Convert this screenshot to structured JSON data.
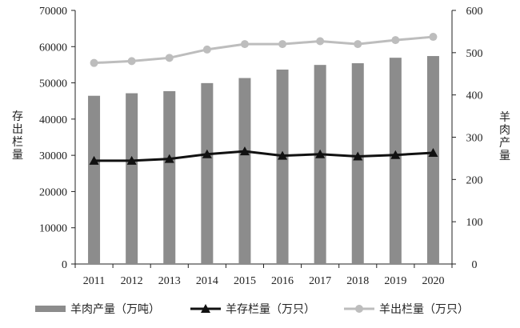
{
  "chart_data": {
    "type": "bar+line",
    "categories": [
      "2011",
      "2012",
      "2013",
      "2014",
      "2015",
      "2016",
      "2017",
      "2018",
      "2019",
      "2020"
    ],
    "left_axis": {
      "label": "存出栏量",
      "ylim": [
        0,
        70000
      ],
      "ticks": [
        "0",
        "10000",
        "20000",
        "30000",
        "40000",
        "50000",
        "60000",
        "70000"
      ]
    },
    "right_axis": {
      "label": "羊肉产量",
      "ylim": [
        0,
        600
      ],
      "ticks": [
        "0",
        "100",
        "200",
        "300",
        "400",
        "500",
        "600"
      ]
    },
    "series": [
      {
        "name": "羊肉产量（万吨）",
        "type": "bar",
        "axis": "right",
        "color": "#8c8c8c",
        "values": [
          398,
          404,
          409,
          428,
          440,
          460,
          471,
          475,
          488,
          492
        ]
      },
      {
        "name": "羊存栏量（万只）",
        "type": "line",
        "axis": "left",
        "marker": "triangle",
        "color": "#111111",
        "values": [
          28500,
          28500,
          29000,
          30300,
          31100,
          29900,
          30300,
          29700,
          30100,
          30700
        ]
      },
      {
        "name": "羊出栏量（万只）",
        "type": "line",
        "axis": "left",
        "marker": "circle",
        "color": "#bdbdbd",
        "values": [
          55500,
          56000,
          56900,
          59200,
          60700,
          60700,
          61500,
          60700,
          61800,
          62700
        ]
      }
    ],
    "grid": false,
    "legend_position": "bottom"
  }
}
